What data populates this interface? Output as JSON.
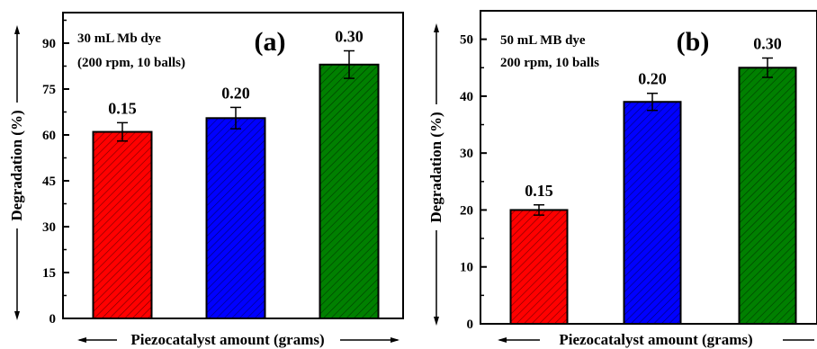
{
  "chart_data": [
    {
      "type": "bar",
      "panel_label": "(a)",
      "annotation": [
        "30 mL Mb dye",
        "(200 rpm, 10 balls)"
      ],
      "xlabel": "Piezocatalyst amount (grams)",
      "ylabel": "Degradation (%)",
      "ylim": [
        0,
        100
      ],
      "yticks": [
        0,
        15,
        30,
        45,
        60,
        75,
        90
      ],
      "categories": [
        "0.15",
        "0.20",
        "0.30"
      ],
      "values": [
        61,
        65.5,
        83
      ],
      "errors": [
        3,
        3.5,
        4.5
      ],
      "colors": [
        "#ff0000",
        "#0000ff",
        "#008000"
      ],
      "pattern": "diagonal-hatch",
      "grid": false
    },
    {
      "type": "bar",
      "panel_label": "(b)",
      "annotation": [
        "50 mL MB dye",
        "200 rpm, 10 balls"
      ],
      "xlabel": "Piezocatalyst amount (grams)",
      "ylabel": "Degradation (%)",
      "ylim": [
        0,
        55
      ],
      "yticks": [
        0,
        10,
        20,
        30,
        40,
        50
      ],
      "categories": [
        "0.15",
        "0.20",
        "0.30"
      ],
      "values": [
        20,
        39,
        45
      ],
      "errors": [
        0.9,
        1.5,
        1.7
      ],
      "colors": [
        "#ff0000",
        "#0000ff",
        "#008000"
      ],
      "pattern": "diagonal-hatch",
      "grid": false
    }
  ]
}
